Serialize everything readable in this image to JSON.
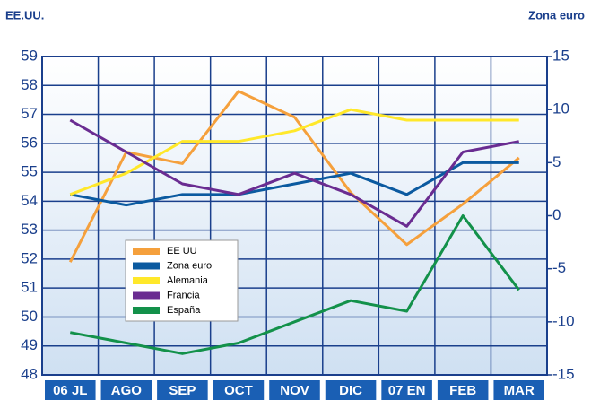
{
  "chart_data": {
    "type": "line",
    "y_axis_label": "EE.UU.",
    "y2_axis_label": "Zona euro",
    "categories": [
      "06 JL",
      "AGO",
      "SEP",
      "OCT",
      "NOV",
      "DIC",
      "07 EN",
      "FEB",
      "MAR"
    ],
    "ylim": [
      48,
      59
    ],
    "yticks": [
      48,
      49,
      50,
      51,
      52,
      53,
      54,
      55,
      56,
      57,
      58,
      59
    ],
    "y2lim": [
      -15,
      15
    ],
    "y2ticks": [
      -15,
      -10,
      -5,
      0,
      5,
      10,
      15
    ],
    "grid": true,
    "legend": "lower left",
    "series": [
      {
        "name": "EE UU",
        "color": "#f5a03c",
        "values": [
          51.9,
          55.7,
          55.3,
          57.8,
          56.9,
          54.3,
          52.5,
          53.9,
          55.5
        ]
      },
      {
        "name": "Zona euro",
        "color": "#0b5aa0",
        "axis": "y2",
        "values": [
          2,
          1,
          2,
          2,
          3,
          4,
          2,
          5,
          5
        ]
      },
      {
        "name": "Alemania",
        "color": "#ffe82a",
        "axis": "y2",
        "values": [
          2,
          4,
          7,
          7,
          8,
          10,
          9,
          9,
          9
        ]
      },
      {
        "name": "Francia",
        "color": "#6a2c91",
        "axis": "y2",
        "values": [
          9,
          6,
          3,
          2,
          4,
          2,
          -1,
          6,
          7
        ]
      },
      {
        "name": "España",
        "color": "#13914a",
        "axis": "y2",
        "values": [
          -11,
          -12,
          -13,
          -12,
          -10,
          -8,
          -9,
          0,
          -7
        ]
      }
    ]
  }
}
